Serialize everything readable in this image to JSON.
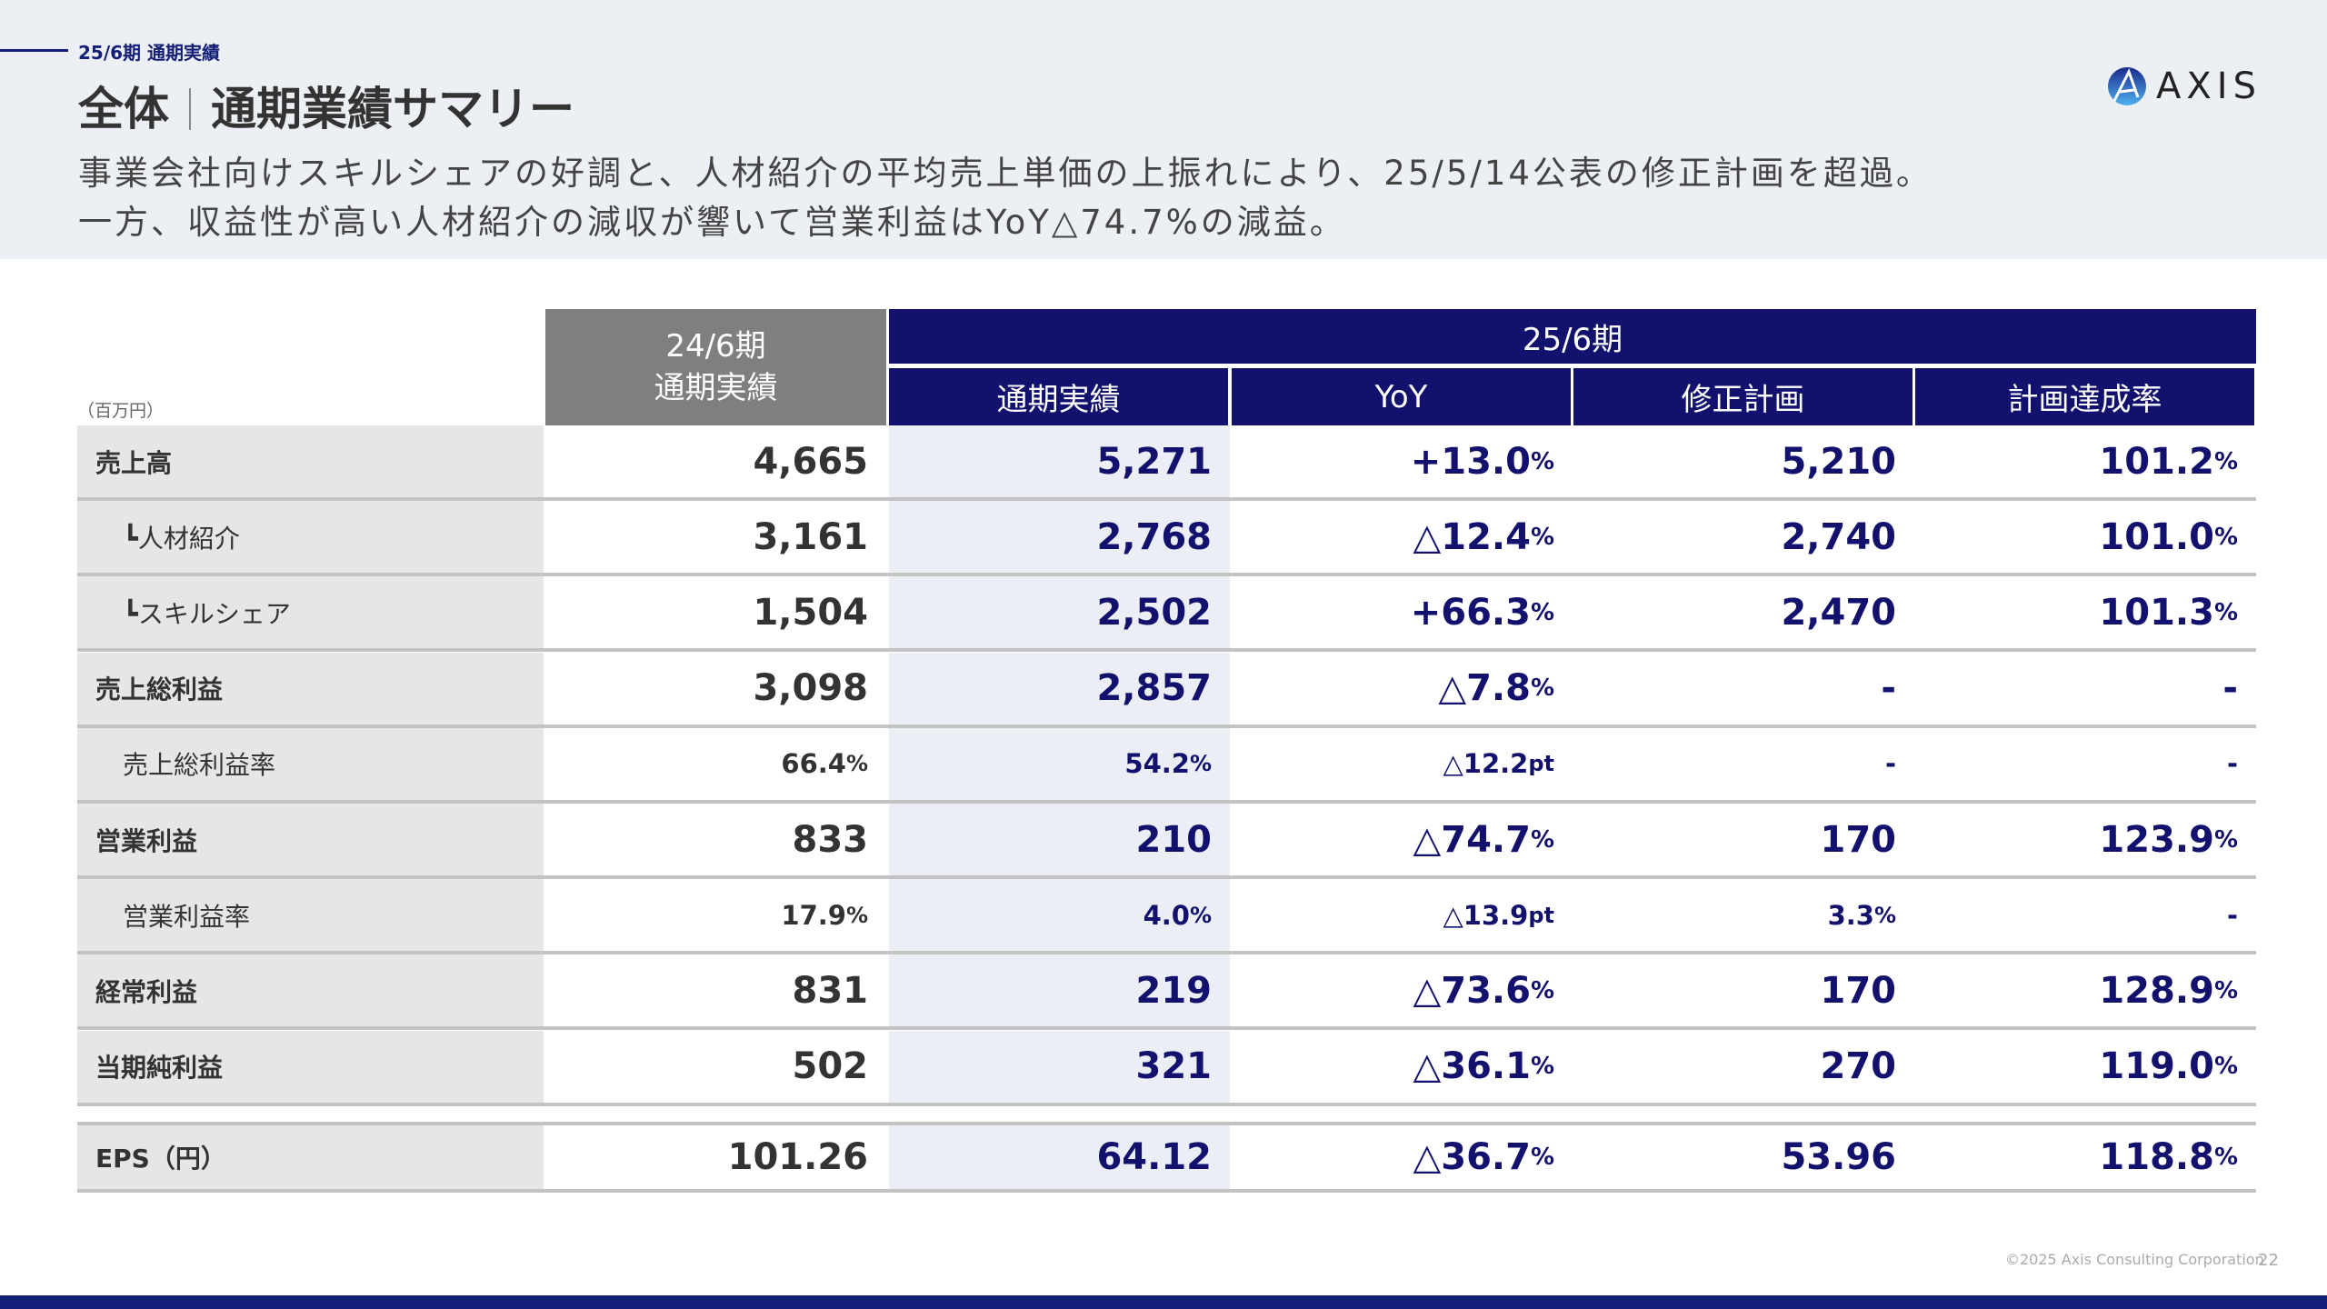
{
  "header": {
    "breadcrumb": "25/6期 通期実績",
    "title_left": "全体",
    "title_right": "通期業績サマリー",
    "subtitle_lines": [
      "事業会社向けスキルシェアの好調と、人材紹介の平均売上単価の上振れにより、25/5/14公表の修正計画を超過。",
      "一方、収益性が高い人材紹介の減収が響いて営業利益はYoY△74.7%の減益。"
    ]
  },
  "logo": {
    "text": "AXIS"
  },
  "table": {
    "unit": "（百万円）",
    "prev_header": [
      "24/6期",
      "通期実績"
    ],
    "cur_group": "25/6期",
    "cur_columns": [
      "通期実績",
      "YoY",
      "修正計画",
      "計画達成率"
    ],
    "rows": [
      {
        "label": "売上高",
        "style": "bold",
        "prev": "4,665",
        "cur": "5,271",
        "yoy": "+13.0",
        "yoy_unit": "%",
        "plan": "5,210",
        "rate": "101.2",
        "rate_unit": "%"
      },
      {
        "label": "┗人材紹介",
        "style": "indent",
        "prev": "3,161",
        "cur": "2,768",
        "yoy": "△12.4",
        "yoy_unit": "%",
        "plan": "2,740",
        "rate": "101.0",
        "rate_unit": "%"
      },
      {
        "label": "┗スキルシェア",
        "style": "indent",
        "prev": "1,504",
        "cur": "2,502",
        "yoy": "+66.3",
        "yoy_unit": "%",
        "plan": "2,470",
        "rate": "101.3",
        "rate_unit": "%"
      },
      {
        "label": "売上総利益",
        "style": "bold",
        "prev": "3,098",
        "cur": "2,857",
        "yoy": "△7.8",
        "yoy_unit": "%",
        "plan": "-",
        "rate": "-",
        "rate_unit": ""
      },
      {
        "label": "売上総利益率",
        "style": "small",
        "prev": "66.4",
        "prev_unit": "%",
        "cur": "54.2",
        "cur_unit": "%",
        "yoy": "△12.2",
        "yoy_unit": "pt",
        "plan": "-",
        "rate": "-",
        "rate_unit": ""
      },
      {
        "label": "営業利益",
        "style": "bold",
        "prev": "833",
        "cur": "210",
        "yoy": "△74.7",
        "yoy_unit": "%",
        "plan": "170",
        "rate": "123.9",
        "rate_unit": "%"
      },
      {
        "label": "営業利益率",
        "style": "small",
        "prev": "17.9",
        "prev_unit": "%",
        "cur": "4.0",
        "cur_unit": "%",
        "yoy": "△13.9",
        "yoy_unit": "pt",
        "plan": "3.3",
        "plan_unit": "%",
        "rate": "-",
        "rate_unit": ""
      },
      {
        "label": "経常利益",
        "style": "bold",
        "prev": "831",
        "cur": "219",
        "yoy": "△73.6",
        "yoy_unit": "%",
        "plan": "170",
        "rate": "128.9",
        "rate_unit": "%"
      },
      {
        "label": "当期純利益",
        "style": "bold",
        "prev": "502",
        "cur": "321",
        "yoy": "△36.1",
        "yoy_unit": "%",
        "plan": "270",
        "rate": "119.0",
        "rate_unit": "%"
      }
    ],
    "eps": {
      "label": "EPS（円）",
      "prev": "101.26",
      "cur": "64.12",
      "yoy": "△36.7",
      "yoy_unit": "%",
      "plan": "53.96",
      "rate": "118.8",
      "rate_unit": "%"
    }
  },
  "footer": {
    "copyright": "©2025 Axis Consulting Corporation",
    "page": "22"
  },
  "colors": {
    "navy": "#12126e",
    "gray_header": "#7f7f7f",
    "band": "#eceff4"
  }
}
